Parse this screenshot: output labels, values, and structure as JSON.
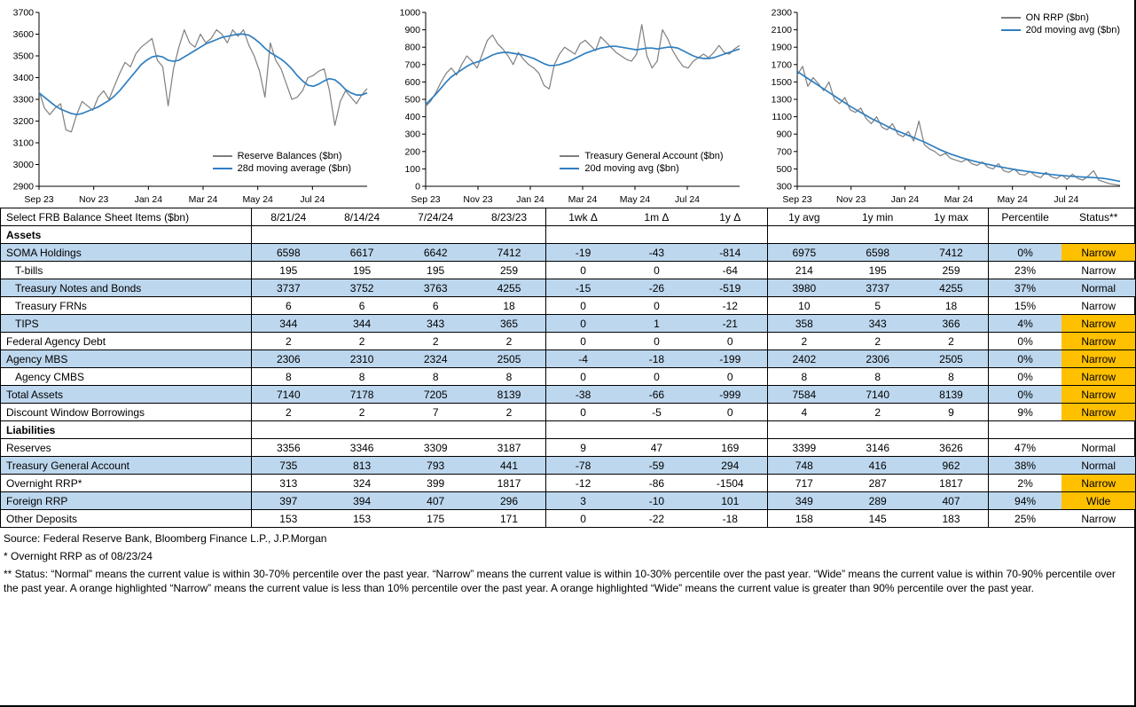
{
  "colors": {
    "raw_line": "#7f7f7f",
    "avg_line": "#2f7fc1",
    "row_shade": "#bdd7ee",
    "status_highlight": "#ffc000"
  },
  "chart_data": [
    {
      "type": "line",
      "name": "reserve-balances",
      "xticks": [
        "Sep 23",
        "Nov 23",
        "Jan 24",
        "Mar 24",
        "May 24",
        "Jul 24"
      ],
      "ylim": [
        2900,
        3700
      ],
      "yticks": [
        2900,
        3000,
        3100,
        3200,
        3300,
        3400,
        3500,
        3600,
        3700
      ],
      "legend_position": "bottom-right",
      "series": [
        {
          "name": "Reserve Balances ($bn)",
          "color": "#7f7f7f",
          "values": [
            3340,
            3260,
            3230,
            3260,
            3280,
            3160,
            3150,
            3230,
            3290,
            3270,
            3250,
            3310,
            3340,
            3300,
            3360,
            3420,
            3470,
            3450,
            3510,
            3540,
            3560,
            3580,
            3480,
            3450,
            3270,
            3440,
            3540,
            3620,
            3560,
            3540,
            3600,
            3560,
            3580,
            3620,
            3600,
            3560,
            3620,
            3590,
            3620,
            3550,
            3500,
            3430,
            3310,
            3560,
            3480,
            3440,
            3370,
            3300,
            3310,
            3340,
            3400,
            3410,
            3430,
            3440,
            3340,
            3180,
            3290,
            3340,
            3310,
            3280,
            3320,
            3350
          ]
        },
        {
          "name": "28d moving average ($bn)",
          "color": "#2f7fc1",
          "values": [
            3330,
            3310,
            3290,
            3270,
            3255,
            3245,
            3235,
            3230,
            3235,
            3245,
            3255,
            3265,
            3280,
            3295,
            3315,
            3340,
            3370,
            3400,
            3430,
            3460,
            3480,
            3495,
            3500,
            3495,
            3480,
            3475,
            3480,
            3495,
            3510,
            3525,
            3540,
            3555,
            3565,
            3575,
            3585,
            3590,
            3595,
            3600,
            3600,
            3595,
            3580,
            3560,
            3535,
            3515,
            3500,
            3485,
            3465,
            3440,
            3410,
            3385,
            3365,
            3360,
            3370,
            3385,
            3395,
            3390,
            3370,
            3345,
            3330,
            3320,
            3320,
            3330
          ]
        }
      ]
    },
    {
      "type": "line",
      "name": "treasury-general-account",
      "xticks": [
        "Sep 23",
        "Nov 23",
        "Jan 24",
        "Mar 24",
        "May 24",
        "Jul 24"
      ],
      "ylim": [
        0,
        1000
      ],
      "yticks": [
        0,
        100,
        200,
        300,
        400,
        500,
        600,
        700,
        800,
        900,
        1000
      ],
      "legend_position": "bottom-right",
      "series": [
        {
          "name": "Treasury General Account ($bn)",
          "color": "#7f7f7f",
          "values": [
            460,
            490,
            540,
            600,
            650,
            680,
            640,
            700,
            750,
            720,
            680,
            760,
            840,
            870,
            820,
            790,
            750,
            700,
            770,
            730,
            700,
            680,
            650,
            580,
            560,
            700,
            760,
            800,
            780,
            760,
            820,
            840,
            810,
            780,
            860,
            830,
            800,
            770,
            750,
            730,
            720,
            760,
            930,
            750,
            680,
            720,
            900,
            850,
            780,
            730,
            690,
            680,
            720,
            740,
            760,
            740,
            770,
            810,
            770,
            760,
            790,
            810
          ]
        },
        {
          "name": "20d moving avg ($bn)",
          "color": "#2f7fc1",
          "values": [
            470,
            500,
            530,
            565,
            600,
            630,
            650,
            670,
            690,
            705,
            715,
            725,
            740,
            755,
            765,
            770,
            770,
            765,
            760,
            755,
            745,
            735,
            720,
            705,
            695,
            695,
            700,
            710,
            720,
            735,
            750,
            765,
            775,
            785,
            795,
            800,
            805,
            805,
            800,
            795,
            790,
            785,
            790,
            795,
            795,
            790,
            795,
            800,
            800,
            795,
            780,
            765,
            750,
            740,
            735,
            735,
            740,
            750,
            760,
            770,
            780,
            790
          ]
        }
      ]
    },
    {
      "type": "line",
      "name": "on-rrp",
      "xticks": [
        "Sep 23",
        "Nov 23",
        "Jan 24",
        "Mar 24",
        "May 24",
        "Jul 24"
      ],
      "ylim": [
        300,
        2300
      ],
      "yticks": [
        300,
        500,
        700,
        900,
        1100,
        1300,
        1500,
        1700,
        1900,
        2100,
        2300
      ],
      "legend_position": "top-right",
      "series": [
        {
          "name": "ON RRP ($bn)",
          "color": "#7f7f7f",
          "values": [
            1580,
            1680,
            1450,
            1550,
            1480,
            1400,
            1500,
            1300,
            1250,
            1320,
            1180,
            1150,
            1200,
            1080,
            1020,
            1100,
            980,
            950,
            1020,
            900,
            870,
            930,
            820,
            1050,
            780,
            730,
            700,
            650,
            680,
            620,
            600,
            580,
            610,
            560,
            540,
            580,
            520,
            500,
            560,
            480,
            460,
            500,
            440,
            430,
            470,
            420,
            400,
            460,
            410,
            390,
            430,
            380,
            440,
            390,
            370,
            420,
            480,
            370,
            350,
            330,
            320,
            310
          ]
        },
        {
          "name": "20d moving avg ($bn)",
          "color": "#2f7fc1",
          "values": [
            1620,
            1580,
            1540,
            1500,
            1460,
            1420,
            1380,
            1340,
            1300,
            1260,
            1220,
            1185,
            1150,
            1115,
            1080,
            1050,
            1020,
            990,
            960,
            935,
            910,
            885,
            860,
            835,
            810,
            780,
            750,
            720,
            695,
            670,
            650,
            630,
            612,
            595,
            580,
            566,
            553,
            540,
            528,
            516,
            505,
            494,
            484,
            475,
            466,
            458,
            450,
            443,
            436,
            430,
            424,
            419,
            414,
            410,
            406,
            403,
            400,
            396,
            390,
            380,
            368,
            355
          ]
        }
      ]
    }
  ],
  "table": {
    "title": "Select FRB Balance Sheet Items ($bn)",
    "columns": [
      "8/21/24",
      "8/14/24",
      "7/24/24",
      "8/23/23",
      "1wk Δ",
      "1m Δ",
      "1y Δ",
      "1y avg",
      "1y min",
      "1y max",
      "Percentile",
      "Status**"
    ],
    "rows": [
      {
        "type": "section",
        "label": "Assets"
      },
      {
        "label": "SOMA Holdings",
        "indent": 0,
        "shade": true,
        "values": [
          "6598",
          "6617",
          "6642",
          "7412",
          "-19",
          "-43",
          "-814",
          "6975",
          "6598",
          "7412",
          "0%"
        ],
        "status": "Narrow",
        "highlight": true
      },
      {
        "label": "T-bills",
        "indent": 1,
        "shade": false,
        "values": [
          "195",
          "195",
          "195",
          "259",
          "0",
          "0",
          "-64",
          "214",
          "195",
          "259",
          "23%"
        ],
        "status": "Narrow",
        "highlight": false
      },
      {
        "label": "Treasury Notes and Bonds",
        "indent": 1,
        "shade": true,
        "values": [
          "3737",
          "3752",
          "3763",
          "4255",
          "-15",
          "-26",
          "-519",
          "3980",
          "3737",
          "4255",
          "37%"
        ],
        "status": "Normal",
        "highlight": false
      },
      {
        "label": "Treasury FRNs",
        "indent": 1,
        "shade": false,
        "values": [
          "6",
          "6",
          "6",
          "18",
          "0",
          "0",
          "-12",
          "10",
          "5",
          "18",
          "15%"
        ],
        "status": "Narrow",
        "highlight": false
      },
      {
        "label": "TIPS",
        "indent": 1,
        "shade": true,
        "values": [
          "344",
          "344",
          "343",
          "365",
          "0",
          "1",
          "-21",
          "358",
          "343",
          "366",
          "4%"
        ],
        "status": "Narrow",
        "highlight": true
      },
      {
        "label": "Federal Agency Debt",
        "indent": 0,
        "shade": false,
        "values": [
          "2",
          "2",
          "2",
          "2",
          "0",
          "0",
          "0",
          "2",
          "2",
          "2",
          "0%"
        ],
        "status": "Narrow",
        "highlight": true
      },
      {
        "label": "Agency MBS",
        "indent": 0,
        "shade": true,
        "values": [
          "2306",
          "2310",
          "2324",
          "2505",
          "-4",
          "-18",
          "-199",
          "2402",
          "2306",
          "2505",
          "0%"
        ],
        "status": "Narrow",
        "highlight": true
      },
      {
        "label": "Agency CMBS",
        "indent": 1,
        "shade": false,
        "values": [
          "8",
          "8",
          "8",
          "8",
          "0",
          "0",
          "0",
          "8",
          "8",
          "8",
          "0%"
        ],
        "status": "Narrow",
        "highlight": true
      },
      {
        "label": "Total Assets",
        "indent": 0,
        "shade": true,
        "values": [
          "7140",
          "7178",
          "7205",
          "8139",
          "-38",
          "-66",
          "-999",
          "7584",
          "7140",
          "8139",
          "0%"
        ],
        "status": "Narrow",
        "highlight": true
      },
      {
        "label": "Discount Window Borrowings",
        "indent": 0,
        "shade": false,
        "values": [
          "2",
          "2",
          "7",
          "2",
          "0",
          "-5",
          "0",
          "4",
          "2",
          "9",
          "9%"
        ],
        "status": "Narrow",
        "highlight": true
      },
      {
        "type": "section",
        "label": "Liabilities"
      },
      {
        "label": "Reserves",
        "indent": 0,
        "shade": false,
        "values": [
          "3356",
          "3346",
          "3309",
          "3187",
          "9",
          "47",
          "169",
          "3399",
          "3146",
          "3626",
          "47%"
        ],
        "status": "Normal",
        "highlight": false
      },
      {
        "label": "Treasury General Account",
        "indent": 0,
        "shade": true,
        "values": [
          "735",
          "813",
          "793",
          "441",
          "-78",
          "-59",
          "294",
          "748",
          "416",
          "962",
          "38%"
        ],
        "status": "Normal",
        "highlight": false
      },
      {
        "label": "Overnight RRP*",
        "indent": 0,
        "shade": false,
        "values": [
          "313",
          "324",
          "399",
          "1817",
          "-12",
          "-86",
          "-1504",
          "717",
          "287",
          "1817",
          "2%"
        ],
        "status": "Narrow",
        "highlight": true
      },
      {
        "label": "Foreign RRP",
        "indent": 0,
        "shade": true,
        "values": [
          "397",
          "394",
          "407",
          "296",
          "3",
          "-10",
          "101",
          "349",
          "289",
          "407",
          "94%"
        ],
        "status": "Wide",
        "highlight": true
      },
      {
        "label": "Other Deposits",
        "indent": 0,
        "shade": false,
        "values": [
          "153",
          "153",
          "175",
          "171",
          "0",
          "-22",
          "-18",
          "158",
          "145",
          "183",
          "25%"
        ],
        "status": "Narrow",
        "highlight": false
      }
    ]
  },
  "notes": {
    "source": "Source: Federal Reserve Bank, Bloomberg Finance L.P., J.P.Morgan",
    "footnote1": "* Overnight RRP as of 08/23/24",
    "footnote2": "** Status: “Normal” means the current value is within 30-70% percentile over the past year. “Narrow” means the current value is within 10-30% percentile over the past year. “Wide” means the current value is within 70-90% percentile over the past year. A orange highlighted “Narrow” means the current value is less than 10% percentile over the past year. A orange highlighted “Wide” means the current value is greater than 90% percentile over the past year."
  }
}
